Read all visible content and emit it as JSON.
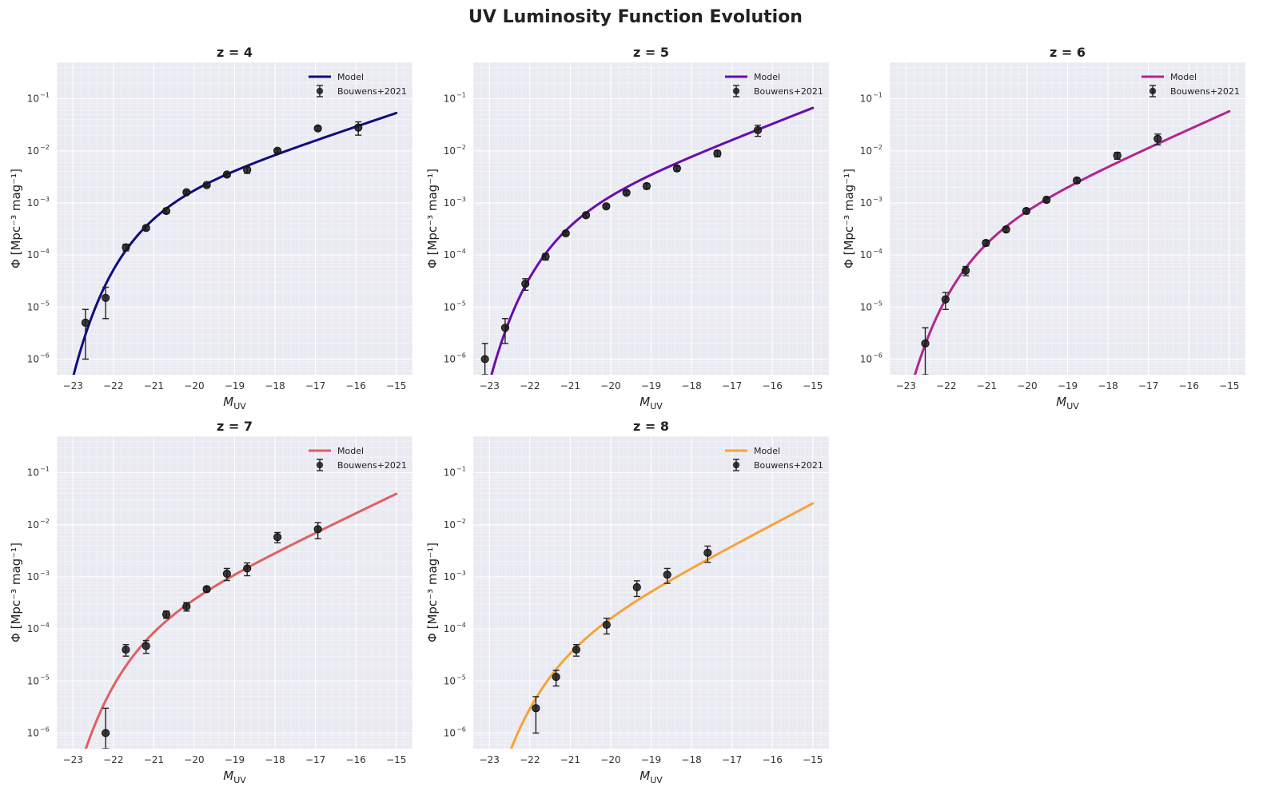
{
  "figure": {
    "title": "UV Luminosity Function Evolution"
  },
  "chart_data": [
    {
      "type": "line",
      "title": "z = 4",
      "xlabel_main": "M",
      "xlabel_sub": "UV",
      "ylabel": "Φ [Mpc⁻³ mag⁻¹]",
      "xlim": [
        -23.4,
        -14.6
      ],
      "xticks": [
        -23,
        -22,
        -21,
        -20,
        -19,
        -18,
        -17,
        -16,
        -15
      ],
      "ylim_log10": [
        -6.3,
        -0.3
      ],
      "yticks_log10": [
        -6,
        -5,
        -4,
        -3,
        -2,
        -1
      ],
      "yscale": "log",
      "grid": true,
      "legend_position": "top-right",
      "model": {
        "name": "Model",
        "color": "#0d0d7f",
        "logphi_star": -2.77,
        "Mstar": -20.9,
        "alpha": -1.65,
        "M_range": [
          -23,
          -15
        ]
      },
      "data": {
        "name": "Bouwens+2021",
        "color": "#222222",
        "points": [
          {
            "x": -22.69,
            "y": 5e-06,
            "lo": 1e-06,
            "hi": 9e-06
          },
          {
            "x": -22.19,
            "y": 1.5e-05,
            "lo": 6e-06,
            "hi": 2.4e-05
          },
          {
            "x": -21.69,
            "y": 0.00014,
            "lo": 0.00012,
            "hi": 0.00016
          },
          {
            "x": -21.19,
            "y": 0.00033,
            "lo": 0.0003,
            "hi": 0.00036
          },
          {
            "x": -20.69,
            "y": 0.0007,
            "lo": 0.00063,
            "hi": 0.00077
          },
          {
            "x": -20.19,
            "y": 0.0016,
            "lo": 0.0015,
            "hi": 0.0017
          },
          {
            "x": -19.69,
            "y": 0.0022,
            "lo": 0.00205,
            "hi": 0.00235
          },
          {
            "x": -19.19,
            "y": 0.0035,
            "lo": 0.0032,
            "hi": 0.0038
          },
          {
            "x": -18.69,
            "y": 0.0043,
            "lo": 0.0037,
            "hi": 0.0049
          },
          {
            "x": -17.94,
            "y": 0.01,
            "lo": 0.0092,
            "hi": 0.0108
          },
          {
            "x": -16.94,
            "y": 0.027,
            "lo": 0.0245,
            "hi": 0.0295
          },
          {
            "x": -15.94,
            "y": 0.028,
            "lo": 0.02,
            "hi": 0.036
          }
        ]
      }
    },
    {
      "type": "line",
      "title": "z = 5",
      "xlabel_main": "M",
      "xlabel_sub": "UV",
      "ylabel": "Φ [Mpc⁻³ mag⁻¹]",
      "xlim": [
        -23.4,
        -14.6
      ],
      "xticks": [
        -23,
        -22,
        -21,
        -20,
        -19,
        -18,
        -17,
        -16,
        -15
      ],
      "ylim_log10": [
        -6.3,
        -0.3
      ],
      "yticks_log10": [
        -6,
        -5,
        -4,
        -3,
        -2,
        -1
      ],
      "yscale": "log",
      "grid": true,
      "legend_position": "top-right",
      "model": {
        "name": "Model",
        "color": "#6a0dad",
        "logphi_star": -2.95,
        "Mstar": -20.96,
        "alpha": -1.76,
        "M_range": [
          -23,
          -15
        ]
      },
      "data": {
        "name": "Bouwens+2021",
        "color": "#222222",
        "points": [
          {
            "x": -23.11,
            "y": 1e-06,
            "lo": 5e-07,
            "hi": 2e-06
          },
          {
            "x": -22.61,
            "y": 4e-06,
            "lo": 2e-06,
            "hi": 6e-06
          },
          {
            "x": -22.11,
            "y": 2.8e-05,
            "lo": 2.1e-05,
            "hi": 3.5e-05
          },
          {
            "x": -21.61,
            "y": 9.3e-05,
            "lo": 8e-05,
            "hi": 0.000106
          },
          {
            "x": -21.11,
            "y": 0.00026,
            "lo": 0.00024,
            "hi": 0.00028
          },
          {
            "x": -20.61,
            "y": 0.00058,
            "lo": 0.00053,
            "hi": 0.00063
          },
          {
            "x": -20.11,
            "y": 0.00086,
            "lo": 0.0008,
            "hi": 0.00092
          },
          {
            "x": -19.61,
            "y": 0.00157,
            "lo": 0.00144,
            "hi": 0.0017
          },
          {
            "x": -19.11,
            "y": 0.0021,
            "lo": 0.00185,
            "hi": 0.00235
          },
          {
            "x": -18.36,
            "y": 0.0046,
            "lo": 0.0041,
            "hi": 0.0051
          },
          {
            "x": -17.36,
            "y": 0.0089,
            "lo": 0.0077,
            "hi": 0.0101
          },
          {
            "x": -16.36,
            "y": 0.025,
            "lo": 0.019,
            "hi": 0.031
          }
        ]
      }
    },
    {
      "type": "line",
      "title": "z = 6",
      "xlabel_main": "M",
      "xlabel_sub": "UV",
      "ylabel": "Φ [Mpc⁻³ mag⁻¹]",
      "xlim": [
        -23.4,
        -14.6
      ],
      "xticks": [
        -23,
        -22,
        -21,
        -20,
        -19,
        -18,
        -17,
        -16,
        -15
      ],
      "ylim_log10": [
        -6.3,
        -0.3
      ],
      "yticks_log10": [
        -6,
        -5,
        -4,
        -3,
        -2,
        -1
      ],
      "yscale": "log",
      "grid": true,
      "legend_position": "top-right",
      "model": {
        "name": "Model",
        "color": "#b0278f",
        "logphi_star": -3.27,
        "Mstar": -20.94,
        "alpha": -1.87,
        "M_range": [
          -23,
          -15
        ]
      },
      "data": {
        "name": "Bouwens+2021",
        "color": "#222222",
        "points": [
          {
            "x": -22.52,
            "y": 2e-06,
            "lo": 5e-07,
            "hi": 4e-06
          },
          {
            "x": -22.02,
            "y": 1.4e-05,
            "lo": 9e-06,
            "hi": 1.9e-05
          },
          {
            "x": -21.52,
            "y": 5e-05,
            "lo": 4e-05,
            "hi": 6e-05
          },
          {
            "x": -21.02,
            "y": 0.00017,
            "lo": 0.00015,
            "hi": 0.00019
          },
          {
            "x": -20.52,
            "y": 0.00031,
            "lo": 0.000275,
            "hi": 0.000345
          },
          {
            "x": -20.02,
            "y": 0.0007,
            "lo": 0.00062,
            "hi": 0.00078
          },
          {
            "x": -19.52,
            "y": 0.00115,
            "lo": 0.00102,
            "hi": 0.00128
          },
          {
            "x": -18.77,
            "y": 0.0027,
            "lo": 0.0024,
            "hi": 0.003
          },
          {
            "x": -17.77,
            "y": 0.0081,
            "lo": 0.0069,
            "hi": 0.0093
          },
          {
            "x": -16.77,
            "y": 0.017,
            "lo": 0.013,
            "hi": 0.021
          }
        ]
      }
    },
    {
      "type": "line",
      "title": "z = 7",
      "xlabel_main": "M",
      "xlabel_sub": "UV",
      "ylabel": "Φ [Mpc⁻³ mag⁻¹]",
      "xlim": [
        -23.4,
        -14.6
      ],
      "xticks": [
        -23,
        -22,
        -21,
        -20,
        -19,
        -18,
        -17,
        -16,
        -15
      ],
      "ylim_log10": [
        -6.3,
        -0.3
      ],
      "yticks_log10": [
        -6,
        -5,
        -4,
        -3,
        -2,
        -1
      ],
      "yscale": "log",
      "grid": true,
      "legend_position": "top-right",
      "model": {
        "name": "Model",
        "color": "#e06060",
        "logphi_star": -3.6,
        "Mstar": -21.0,
        "alpha": -1.93,
        "M_range": [
          -23,
          -15
        ]
      },
      "data": {
        "name": "Bouwens+2021",
        "color": "#222222",
        "points": [
          {
            "x": -22.19,
            "y": 1e-06,
            "lo": 5e-07,
            "hi": 3e-06
          },
          {
            "x": -21.69,
            "y": 4e-05,
            "lo": 3e-05,
            "hi": 5e-05
          },
          {
            "x": -21.19,
            "y": 4.7e-05,
            "lo": 3.4e-05,
            "hi": 6e-05
          },
          {
            "x": -20.69,
            "y": 0.00019,
            "lo": 0.00016,
            "hi": 0.00022
          },
          {
            "x": -20.19,
            "y": 0.00027,
            "lo": 0.00022,
            "hi": 0.00032
          },
          {
            "x": -19.69,
            "y": 0.00058,
            "lo": 0.00052,
            "hi": 0.00064
          },
          {
            "x": -19.19,
            "y": 0.00115,
            "lo": 0.00085,
            "hi": 0.00145
          },
          {
            "x": -18.69,
            "y": 0.00145,
            "lo": 0.00105,
            "hi": 0.00185
          },
          {
            "x": -17.94,
            "y": 0.0058,
            "lo": 0.0045,
            "hi": 0.0071
          },
          {
            "x": -16.94,
            "y": 0.0082,
            "lo": 0.0054,
            "hi": 0.011
          }
        ]
      }
    },
    {
      "type": "line",
      "title": "z = 8",
      "xlabel_main": "M",
      "xlabel_sub": "UV",
      "ylabel": "Φ [Mpc⁻³ mag⁻¹]",
      "xlim": [
        -23.4,
        -14.6
      ],
      "xticks": [
        -23,
        -22,
        -21,
        -20,
        -19,
        -18,
        -17,
        -16,
        -15
      ],
      "ylim_log10": [
        -6.3,
        -0.3
      ],
      "yticks_log10": [
        -6,
        -5,
        -4,
        -3,
        -2,
        -1
      ],
      "yscale": "log",
      "grid": true,
      "legend_position": "top-right",
      "model": {
        "name": "Model",
        "color": "#f5a33a",
        "logphi_star": -4.0,
        "Mstar": -21.0,
        "alpha": -2.02,
        "M_range": [
          -23,
          -15
        ]
      },
      "data": {
        "name": "Bouwens+2021",
        "color": "#222222",
        "points": [
          {
            "x": -21.85,
            "y": 3e-06,
            "lo": 1e-06,
            "hi": 5e-06
          },
          {
            "x": -21.35,
            "y": 1.2e-05,
            "lo": 8e-06,
            "hi": 1.6e-05
          },
          {
            "x": -20.85,
            "y": 4e-05,
            "lo": 3e-05,
            "hi": 5e-05
          },
          {
            "x": -20.1,
            "y": 0.00012,
            "lo": 8e-05,
            "hi": 0.00016
          },
          {
            "x": -19.35,
            "y": 0.00063,
            "lo": 0.00042,
            "hi": 0.00084
          },
          {
            "x": -18.6,
            "y": 0.0011,
            "lo": 0.00075,
            "hi": 0.00145
          },
          {
            "x": -17.6,
            "y": 0.0029,
            "lo": 0.0019,
            "hi": 0.0039
          }
        ]
      }
    }
  ]
}
